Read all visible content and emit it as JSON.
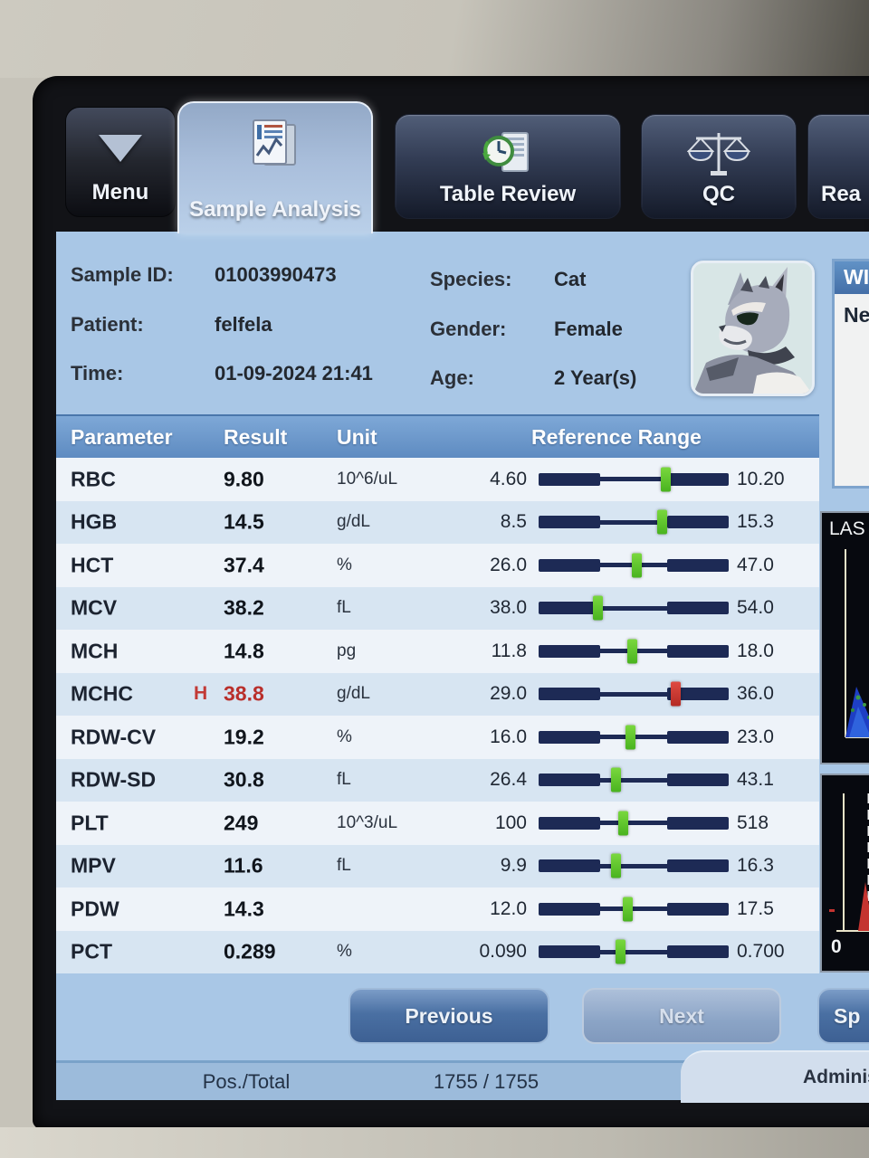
{
  "tabs": [
    {
      "label": "Menu"
    },
    {
      "label": "Sample Analysis"
    },
    {
      "label": "Table Review"
    },
    {
      "label": "QC"
    },
    {
      "label": "Rea"
    }
  ],
  "sample_info": {
    "left": [
      {
        "label": "Sample ID:",
        "value": "01003990473"
      },
      {
        "label": "Patient:",
        "value": "felfela"
      },
      {
        "label": "Time:",
        "value": "01-09-2024 21:41"
      }
    ],
    "right": [
      {
        "label": "Species:",
        "value": "Cat"
      },
      {
        "label": "Gender:",
        "value": "Female"
      },
      {
        "label": "Age:",
        "value": "2 Year(s)"
      }
    ]
  },
  "table": {
    "headers": [
      "Parameter",
      "Result",
      "Unit",
      "Reference Range"
    ],
    "rows": [
      {
        "param": "RBC",
        "flag": "",
        "result": "9.80",
        "unit": "10^6/uL",
        "min": "4.60",
        "max": "10.20",
        "value": 9.8,
        "low": 4.6,
        "high": 10.2
      },
      {
        "param": "HGB",
        "flag": "",
        "result": "14.5",
        "unit": "g/dL",
        "min": "8.5",
        "max": "15.3",
        "value": 14.5,
        "low": 8.5,
        "high": 15.3
      },
      {
        "param": "HCT",
        "flag": "",
        "result": "37.4",
        "unit": "%",
        "min": "26.0",
        "max": "47.0",
        "value": 37.4,
        "low": 26.0,
        "high": 47.0
      },
      {
        "param": "MCV",
        "flag": "",
        "result": "38.2",
        "unit": "fL",
        "min": "38.0",
        "max": "54.0",
        "value": 38.2,
        "low": 38.0,
        "high": 54.0
      },
      {
        "param": "MCH",
        "flag": "",
        "result": "14.8",
        "unit": "pg",
        "min": "11.8",
        "max": "18.0",
        "value": 14.8,
        "low": 11.8,
        "high": 18.0
      },
      {
        "param": "MCHC",
        "flag": "H",
        "result": "38.8",
        "unit": "g/dL",
        "min": "29.0",
        "max": "36.0",
        "value": 38.8,
        "low": 29.0,
        "high": 36.0
      },
      {
        "param": "RDW-CV",
        "flag": "",
        "result": "19.2",
        "unit": "%",
        "min": "16.0",
        "max": "23.0",
        "value": 19.2,
        "low": 16.0,
        "high": 23.0
      },
      {
        "param": "RDW-SD",
        "flag": "",
        "result": "30.8",
        "unit": "fL",
        "min": "26.4",
        "max": "43.1",
        "value": 30.8,
        "low": 26.4,
        "high": 43.1
      },
      {
        "param": "PLT",
        "flag": "",
        "result": "249",
        "unit": "10^3/uL",
        "min": "100",
        "max": "518",
        "value": 249,
        "low": 100,
        "high": 518
      },
      {
        "param": "MPV",
        "flag": "",
        "result": "11.6",
        "unit": "fL",
        "min": "9.9",
        "max": "16.3",
        "value": 11.6,
        "low": 9.9,
        "high": 16.3
      },
      {
        "param": "PDW",
        "flag": "",
        "result": "14.3",
        "unit": "",
        "min": "12.0",
        "max": "17.5",
        "value": 14.3,
        "low": 12.0,
        "high": 17.5
      },
      {
        "param": "PCT",
        "flag": "",
        "result": "0.289",
        "unit": "%",
        "min": "0.090",
        "max": "0.700",
        "value": 0.289,
        "low": 0.09,
        "high": 0.7
      }
    ]
  },
  "right_panel": {
    "header": "WI",
    "item": "Ne"
  },
  "plots": {
    "scatter_label": "LAS",
    "histogram_origin": "0"
  },
  "buttons": {
    "previous": "Previous",
    "next": "Next",
    "special": "Sp"
  },
  "status_bar": {
    "left_label": "Pos./Total",
    "counter": "1755 / 1755",
    "user": "Adminis"
  },
  "colors": {
    "marker_green": "#56c82c",
    "marker_red": "#cf3732",
    "bar_navy": "#1d2a55",
    "table_header_blue": "#5e8bc1",
    "screen_blue": "#a9c7e6"
  }
}
